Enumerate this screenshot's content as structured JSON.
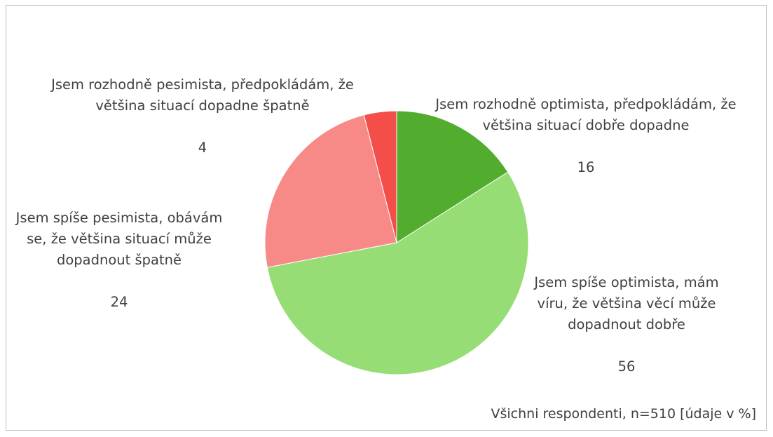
{
  "chart_data": {
    "type": "pie",
    "note": "Všichni respondenti, n=510 [údaje v %]",
    "slices": [
      {
        "label": "Jsem rozhodně optimista, předpokládám, že většina situací dobře dopadne",
        "value": 16,
        "value_label": "16",
        "color": "#52ad2e"
      },
      {
        "label": "Jsem spíše optimista, mám víru, že většina věcí může dopadnout dobře",
        "value": 56,
        "value_label": "56",
        "color": "#95dd74"
      },
      {
        "label": "Jsem spíše pesimista, obávám se, že většina situací může dopadnout špatně",
        "value": 24,
        "value_label": "24",
        "color": "#f78a87"
      },
      {
        "label": "Jsem rozhodně pesimista, předpokládám, že většina situací dopadne špatně",
        "value": 4,
        "value_label": "4",
        "color": "#f44e4b"
      }
    ]
  }
}
